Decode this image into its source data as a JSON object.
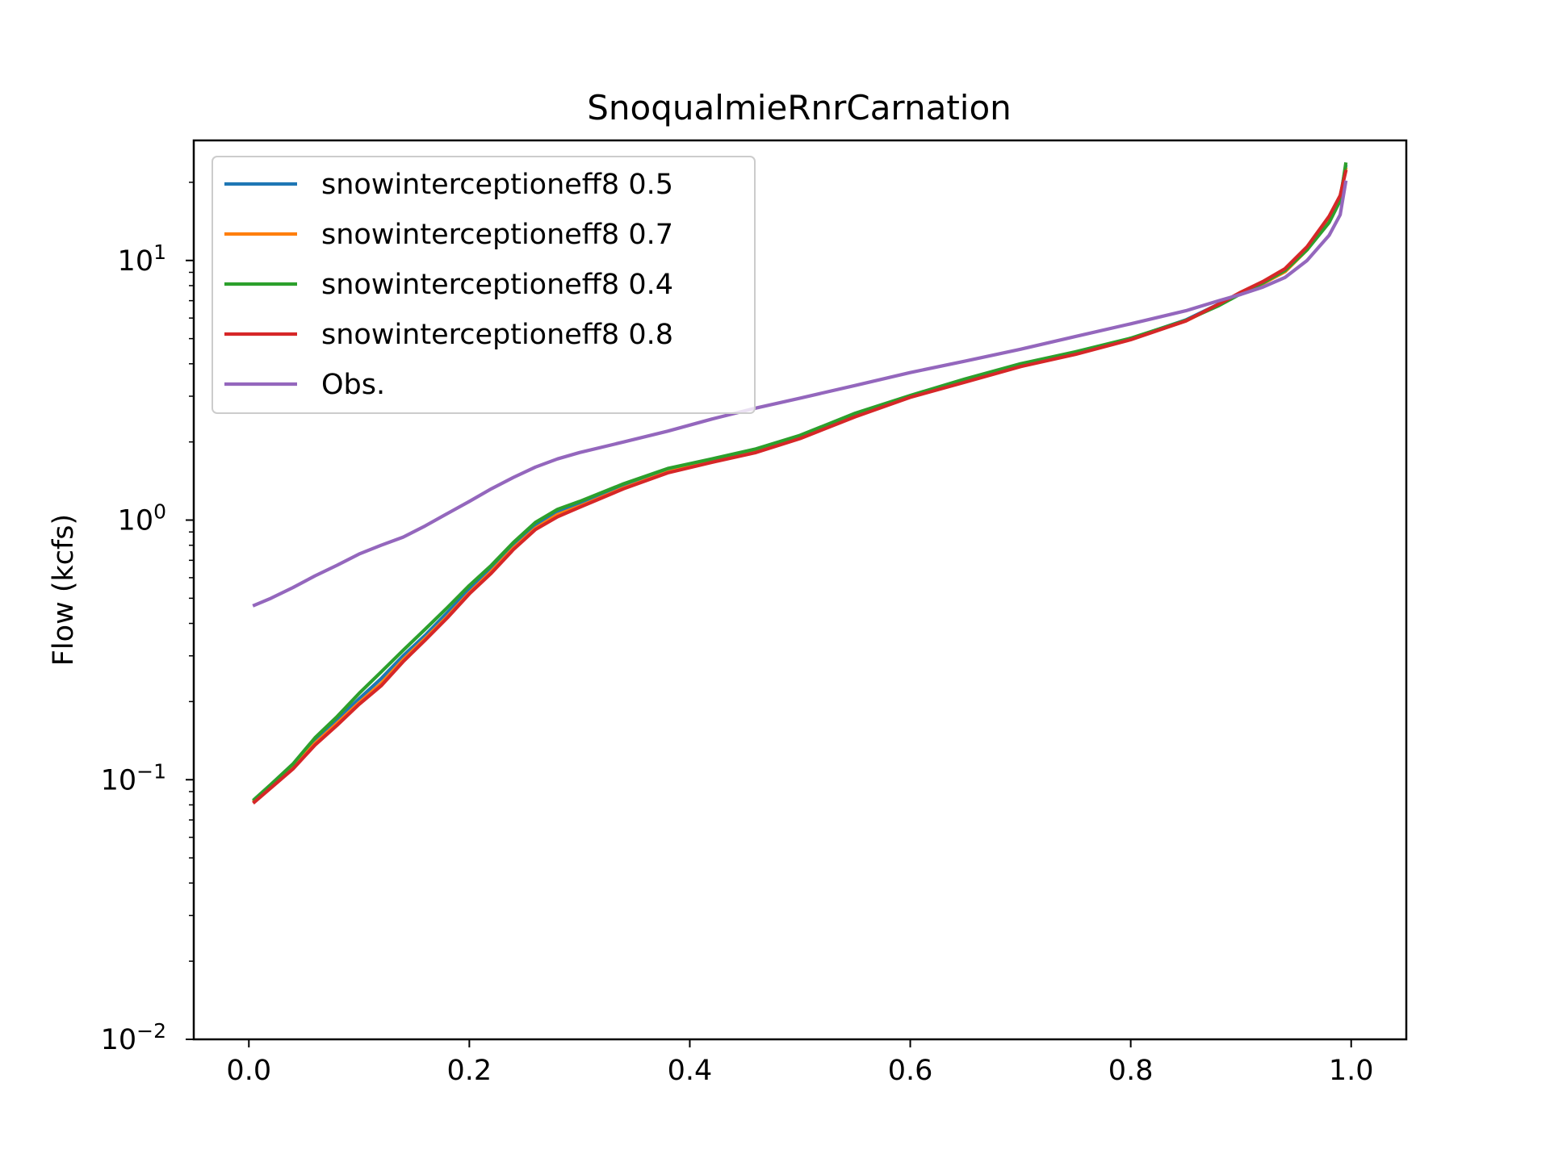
{
  "chart_data": {
    "type": "line",
    "title": "SnoqualmieRnrCarnation",
    "xlabel": "",
    "ylabel": "Flow (kcfs)",
    "xlim": [
      -0.05,
      1.05
    ],
    "ylim": [
      0.01,
      29
    ],
    "yscale": "log",
    "grid": false,
    "legend_position": "upper-left",
    "xticks": [
      {
        "value": 0.0,
        "label": "0.0"
      },
      {
        "value": 0.2,
        "label": "0.2"
      },
      {
        "value": 0.4,
        "label": "0.4"
      },
      {
        "value": 0.6,
        "label": "0.6"
      },
      {
        "value": 0.8,
        "label": "0.8"
      },
      {
        "value": 1.0,
        "label": "1.0"
      }
    ],
    "yticks": [
      {
        "value": 0.01,
        "base": "10",
        "exp": "−2"
      },
      {
        "value": 0.1,
        "base": "10",
        "exp": "−1"
      },
      {
        "value": 1,
        "base": "10",
        "exp": "0"
      },
      {
        "value": 10,
        "base": "10",
        "exp": "1"
      }
    ],
    "x": [
      0.005,
      0.02,
      0.04,
      0.06,
      0.08,
      0.1,
      0.12,
      0.14,
      0.16,
      0.18,
      0.2,
      0.22,
      0.24,
      0.26,
      0.28,
      0.3,
      0.34,
      0.38,
      0.42,
      0.46,
      0.5,
      0.55,
      0.6,
      0.65,
      0.7,
      0.75,
      0.8,
      0.85,
      0.88,
      0.9,
      0.92,
      0.94,
      0.96,
      0.98,
      0.99,
      0.995
    ],
    "series": [
      {
        "name": "snowinterceptioneff8 0.5",
        "color": "#1f77b4",
        "values": [
          0.083,
          0.095,
          0.113,
          0.142,
          0.17,
          0.205,
          0.245,
          0.3,
          0.36,
          0.44,
          0.54,
          0.65,
          0.8,
          0.95,
          1.07,
          1.15,
          1.35,
          1.55,
          1.7,
          1.85,
          2.1,
          2.55,
          3.0,
          3.45,
          3.95,
          4.4,
          5.0,
          5.9,
          6.8,
          7.5,
          8.2,
          9.1,
          11.0,
          14.5,
          17.5,
          23.0
        ]
      },
      {
        "name": "snowinterceptioneff8 0.7",
        "color": "#ff7f0e",
        "values": [
          0.083,
          0.094,
          0.111,
          0.138,
          0.165,
          0.198,
          0.235,
          0.29,
          0.35,
          0.425,
          0.525,
          0.635,
          0.78,
          0.93,
          1.05,
          1.13,
          1.33,
          1.53,
          1.68,
          1.83,
          2.08,
          2.52,
          2.98,
          3.42,
          3.92,
          4.38,
          4.98,
          5.85,
          6.75,
          7.48,
          8.15,
          9.05,
          11.0,
          14.6,
          17.6,
          22.5
        ]
      },
      {
        "name": "snowinterceptioneff8 0.4",
        "color": "#2ca02c",
        "values": [
          0.084,
          0.096,
          0.115,
          0.145,
          0.175,
          0.215,
          0.26,
          0.315,
          0.38,
          0.46,
          0.56,
          0.67,
          0.82,
          0.98,
          1.1,
          1.18,
          1.38,
          1.58,
          1.72,
          1.88,
          2.12,
          2.58,
          3.02,
          3.5,
          4.0,
          4.45,
          5.02,
          5.88,
          6.7,
          7.45,
          8.2,
          9.15,
          11.0,
          14.0,
          17.0,
          23.5
        ]
      },
      {
        "name": "snowinterceptioneff8 0.8",
        "color": "#d62728",
        "values": [
          0.082,
          0.093,
          0.11,
          0.136,
          0.162,
          0.195,
          0.23,
          0.285,
          0.345,
          0.42,
          0.52,
          0.625,
          0.77,
          0.92,
          1.03,
          1.12,
          1.32,
          1.52,
          1.67,
          1.82,
          2.06,
          2.5,
          2.97,
          3.4,
          3.9,
          4.35,
          4.95,
          5.85,
          6.8,
          7.55,
          8.3,
          9.3,
          11.3,
          14.8,
          17.8,
          22.0
        ]
      },
      {
        "name": "Obs.",
        "color": "#9467bd",
        "values": [
          0.47,
          0.5,
          0.55,
          0.61,
          0.67,
          0.74,
          0.8,
          0.86,
          0.95,
          1.06,
          1.18,
          1.32,
          1.46,
          1.6,
          1.72,
          1.82,
          2.0,
          2.2,
          2.45,
          2.7,
          2.95,
          3.3,
          3.7,
          4.1,
          4.55,
          5.1,
          5.7,
          6.4,
          7.0,
          7.4,
          7.9,
          8.6,
          10.0,
          12.5,
          15.0,
          20.0
        ]
      }
    ]
  }
}
